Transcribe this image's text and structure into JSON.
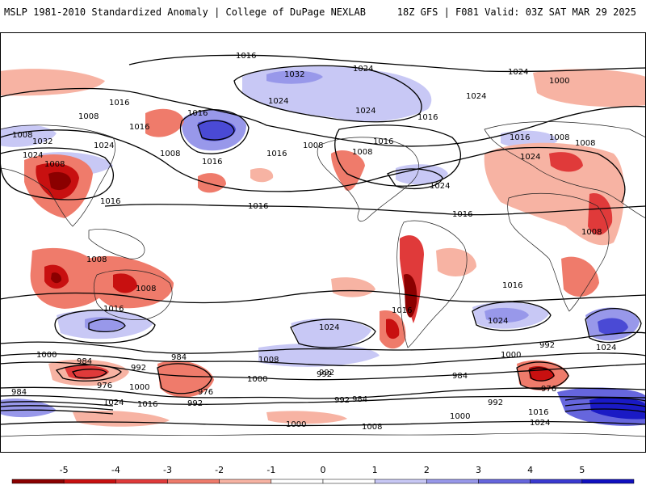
{
  "header": {
    "title_left": "MSLP 1981-2010 Standardized Anomaly | College of DuPage NEXLAB",
    "title_right": "18Z GFS | F081 Valid: 03Z SAT MAR 29 2025"
  },
  "colorbar": {
    "ticks": [
      "-5",
      "-4",
      "-3",
      "-2",
      "-1",
      "0",
      "1",
      "2",
      "3",
      "4",
      "5"
    ],
    "colors": [
      "#8b0000",
      "#c81010",
      "#e03a3a",
      "#ef7b6b",
      "#f7b3a3",
      "#ffffff",
      "#ffffff",
      "#c8c8f5",
      "#9898ea",
      "#6666dd",
      "#3a3ad0",
      "#1010c0"
    ]
  },
  "isobar_labels": [
    "1016",
    "1032",
    "1024",
    "1024",
    "1024",
    "1000",
    "1016",
    "1024",
    "1016",
    "1008",
    "1008",
    "1016",
    "1032",
    "1024",
    "1008",
    "1024",
    "1016",
    "1016",
    "1008",
    "1016",
    "1024",
    "1016",
    "1008",
    "1024",
    "1008",
    "1008",
    "1008",
    "1016",
    "1016",
    "1016",
    "1024",
    "1016",
    "1024",
    "1024",
    "1016",
    "1008",
    "1000",
    "984",
    "1008",
    "1008",
    "1016",
    "992",
    "992",
    "984",
    "1000",
    "992",
    "976",
    "1000",
    "1024",
    "1016",
    "992",
    "976",
    "984",
    "992",
    "1008",
    "1000",
    "1000",
    "992",
    "1000",
    "992",
    "984",
    "1008",
    "1016",
    "1024",
    "976",
    "1024",
    "984",
    "1016"
  ]
}
